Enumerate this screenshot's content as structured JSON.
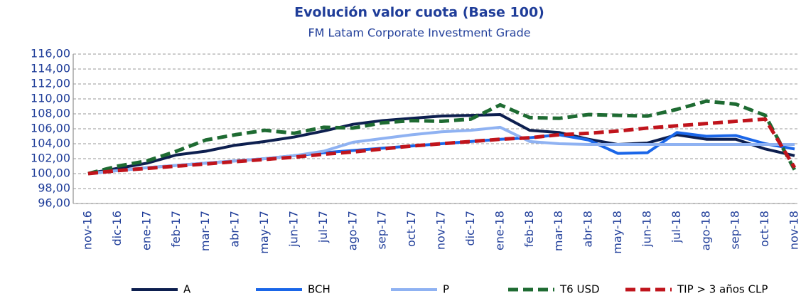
{
  "chart_data": {
    "type": "line",
    "title": "Evolución valor cuota (Base 100)",
    "subtitle": "FM Latam Corporate Investment Grade",
    "categories": [
      "nov-16",
      "dic-16",
      "ene-17",
      "feb-17",
      "mar-17",
      "abr-17",
      "may-17",
      "jun-17",
      "jul-17",
      "ago-17",
      "sep-17",
      "oct-17",
      "nov-17",
      "dic-17",
      "ene-18",
      "feb-18",
      "mar-18",
      "abr-18",
      "may-18",
      "jun-18",
      "jul-18",
      "ago-18",
      "sep-18",
      "oct-18",
      "nov-18"
    ],
    "series": [
      {
        "name": "A",
        "color": "#0d1f4f",
        "dashed": false,
        "values": [
          100,
          100.7,
          101.4,
          102.5,
          103.0,
          103.8,
          104.3,
          104.9,
          105.7,
          106.6,
          107.1,
          107.4,
          107.7,
          107.8,
          107.9,
          105.8,
          105.5,
          104.6,
          103.9,
          104.1,
          105.2,
          104.6,
          104.6,
          103.3,
          102.4
        ]
      },
      {
        "name": "BCH",
        "color": "#1a66e8",
        "dashed": false,
        "values": [
          100,
          100.4,
          100.8,
          101.1,
          101.4,
          101.7,
          102.0,
          102.4,
          102.8,
          103.1,
          103.4,
          103.7,
          104.0,
          104.3,
          104.6,
          104.8,
          105.2,
          104.5,
          102.7,
          102.8,
          105.5,
          105.0,
          105.1,
          104.0,
          103.3
        ]
      },
      {
        "name": "P",
        "color": "#8fb2f2",
        "dashed": false,
        "values": [
          100,
          100.4,
          100.8,
          101.1,
          101.4,
          101.7,
          102.0,
          102.4,
          103.0,
          104.2,
          104.7,
          105.2,
          105.6,
          105.8,
          106.2,
          104.3,
          104.0,
          103.9,
          103.9,
          103.9,
          103.9,
          103.9,
          103.9,
          103.9,
          103.9
        ]
      },
      {
        "name": "T6 USD",
        "color": "#1e6b32",
        "dashed": true,
        "values": [
          100,
          101.0,
          101.7,
          103.0,
          104.5,
          105.2,
          105.8,
          105.4,
          106.2,
          106.1,
          106.8,
          107.1,
          107.0,
          107.3,
          109.2,
          107.5,
          107.4,
          107.9,
          107.8,
          107.7,
          108.6,
          109.7,
          109.3,
          107.8,
          100.5
        ]
      },
      {
        "name": "TIP > 3 años CLP",
        "color": "#c0141c",
        "dashed": true,
        "values": [
          100,
          100.4,
          100.7,
          101.0,
          101.3,
          101.6,
          101.9,
          102.2,
          102.6,
          102.9,
          103.3,
          103.7,
          104.0,
          104.3,
          104.6,
          104.8,
          105.2,
          105.4,
          105.7,
          106.1,
          106.4,
          106.7,
          107.0,
          107.3,
          100.8
        ]
      }
    ],
    "ylim": [
      96,
      116
    ],
    "yticks": [
      {
        "value": 96,
        "label": "96,00"
      },
      {
        "value": 98,
        "label": "98,00"
      },
      {
        "value": 100,
        "label": "100,00"
      },
      {
        "value": 102,
        "label": "102,00"
      },
      {
        "value": 104,
        "label": "104,00"
      },
      {
        "value": 106,
        "label": "106,00"
      },
      {
        "value": 108,
        "label": "108,00"
      },
      {
        "value": 110,
        "label": "110,00"
      },
      {
        "value": 112,
        "label": "112,00"
      },
      {
        "value": 114,
        "label": "114,00"
      },
      {
        "value": 116,
        "label": "116,00"
      }
    ],
    "grid": true,
    "legend": "bottom"
  }
}
